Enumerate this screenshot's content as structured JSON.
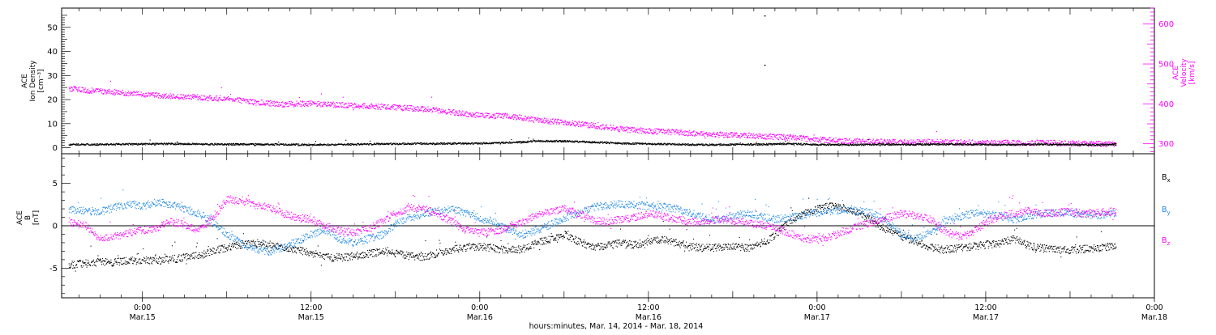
{
  "chart_data": [
    {
      "type": "scatter",
      "panel": "top",
      "title": "",
      "ylabel_left": [
        "ACE",
        "Ion Density",
        "[cm⁻³]"
      ],
      "ylabel_right": [
        "ACE",
        "Velocity",
        "[km/s]"
      ],
      "ylim_left": [
        -2.5,
        58
      ],
      "ylim_right": [
        275,
        640
      ],
      "yticks_left": [
        "0",
        "10",
        "20",
        "30",
        "40",
        "50"
      ],
      "yticks_right": [
        "300",
        "400",
        "500",
        "600"
      ],
      "colors": {
        "density": "#000000",
        "velocity": "#ff00ff"
      },
      "series": [
        {
          "name": "",
          "axis": "left",
          "color": "#000000",
          "x": [
            -10.5,
            -8,
            -4,
            0,
            4,
            8,
            12,
            16,
            20,
            24,
            28,
            32,
            36,
            40,
            44,
            48,
            52,
            54,
            56,
            60,
            64,
            68,
            72,
            76,
            80,
            84,
            88,
            92,
            96,
            100,
            104,
            108,
            112,
            116,
            120,
            124,
            128,
            132,
            136,
            138.5
          ],
          "y": [
            1.5,
            1.5,
            1.6,
            1.7,
            1.8,
            1.7,
            1.6,
            1.6,
            1.5,
            1.4,
            1.5,
            1.7,
            1.8,
            1.9,
            1.9,
            2.0,
            2.3,
            2.5,
            3.0,
            2.9,
            2.5,
            2.0,
            1.8,
            1.6,
            1.4,
            1.5,
            1.6,
            1.8,
            1.5,
            1.4,
            1.5,
            1.5,
            1.6,
            1.6,
            1.5,
            1.4,
            1.6,
            1.5,
            1.4,
            1.6
          ]
        },
        {
          "name": "",
          "axis": "right",
          "color": "#ff00ff",
          "x": [
            -10.5,
            -8,
            -4,
            0,
            4,
            8,
            12,
            16,
            20,
            24,
            28,
            32,
            36,
            40,
            44,
            48,
            52,
            54,
            56,
            60,
            64,
            68,
            72,
            76,
            80,
            84,
            88,
            92,
            96,
            100,
            104,
            108,
            112,
            116,
            120,
            124,
            128,
            132,
            136,
            138.5
          ],
          "y": [
            440,
            435,
            430,
            425,
            420,
            418,
            414,
            405,
            400,
            402,
            398,
            395,
            392,
            388,
            380,
            372,
            370,
            366,
            360,
            355,
            347,
            338,
            333,
            330,
            325,
            323,
            320,
            317,
            312,
            308,
            306,
            305,
            306,
            304,
            304,
            303,
            304,
            302,
            301,
            300
          ]
        }
      ],
      "annotations": [
        {
          "series": "density",
          "x": 88.5,
          "y": 55
        },
        {
          "series": "density",
          "x": 88.5,
          "y": 34.5
        }
      ]
    },
    {
      "type": "scatter",
      "panel": "bottom",
      "title": "",
      "ylabel": [
        "ACE",
        "B",
        "[nT]"
      ],
      "ylim": [
        -8.5,
        8.5
      ],
      "yticks": [
        "-5",
        "0",
        "5"
      ],
      "zero_line": true,
      "colors": {
        "Bx": "#000000",
        "By": "#1e88e5",
        "Bz": "#ff00ff"
      },
      "series": [
        {
          "name": "Bx",
          "color": "#000000",
          "x": [
            -10.5,
            -8,
            -6,
            -4,
            -2,
            0,
            2,
            4,
            6,
            8,
            10,
            12,
            14,
            16,
            18,
            20,
            22,
            24,
            26,
            28,
            30,
            32,
            34,
            36,
            38,
            40,
            42,
            44,
            46,
            48,
            50,
            52,
            54,
            56,
            58,
            60,
            62,
            64,
            66,
            68,
            70,
            72,
            74,
            76,
            78,
            80,
            82,
            84,
            86,
            88,
            90,
            92,
            94,
            96,
            98,
            100,
            102,
            104,
            106,
            108,
            110,
            112,
            114,
            116,
            118,
            120,
            122,
            124,
            126,
            128,
            130,
            132,
            134,
            136,
            138.5
          ],
          "y": [
            -4.6,
            -4.4,
            -4.2,
            -4.3,
            -4.0,
            -4.0,
            -4.1,
            -3.9,
            -3.7,
            -3.5,
            -3.0,
            -2.5,
            -2.2,
            -2.0,
            -2.2,
            -2.5,
            -2.8,
            -3.2,
            -3.6,
            -3.8,
            -3.5,
            -3.3,
            -3.0,
            -3.2,
            -3.5,
            -3.6,
            -3.2,
            -2.8,
            -2.5,
            -2.4,
            -2.6,
            -2.8,
            -2.7,
            -2.0,
            -1.5,
            -1.0,
            -1.8,
            -2.5,
            -2.3,
            -2.0,
            -2.2,
            -1.8,
            -1.5,
            -2.0,
            -2.4,
            -2.6,
            -2.5,
            -2.4,
            -2.6,
            -2.2,
            -1.0,
            0.5,
            1.5,
            2.0,
            2.4,
            2.2,
            1.5,
            0.5,
            -0.5,
            -1.2,
            -1.8,
            -2.5,
            -2.8,
            -2.6,
            -2.4,
            -2.2,
            -2.0,
            -1.5,
            -2.3,
            -2.6,
            -2.8,
            -2.8,
            -2.7,
            -2.6,
            -2.3
          ]
        },
        {
          "name": "By",
          "color": "#1e88e5",
          "x": [
            -10.5,
            -8,
            -6,
            -4,
            -2,
            0,
            2,
            4,
            6,
            8,
            10,
            12,
            14,
            16,
            18,
            20,
            22,
            24,
            26,
            28,
            30,
            32,
            34,
            36,
            38,
            40,
            42,
            44,
            46,
            48,
            50,
            52,
            54,
            56,
            58,
            60,
            62,
            64,
            66,
            68,
            70,
            72,
            74,
            76,
            78,
            80,
            82,
            84,
            86,
            88,
            90,
            92,
            94,
            96,
            98,
            100,
            102,
            104,
            106,
            108,
            110,
            112,
            114,
            116,
            118,
            120,
            122,
            124,
            126,
            128,
            130,
            132,
            134,
            136,
            138.5
          ],
          "y": [
            2.0,
            1.8,
            1.7,
            2.2,
            2.6,
            2.4,
            2.8,
            2.6,
            2.0,
            1.5,
            0.5,
            -1.0,
            -2.0,
            -2.8,
            -3.0,
            -2.5,
            -1.8,
            -1.0,
            -0.5,
            -1.5,
            -2.0,
            -1.5,
            -1.0,
            0.2,
            1.0,
            1.5,
            1.8,
            2.0,
            1.5,
            1.0,
            0.5,
            -0.5,
            -1.0,
            -0.5,
            0.2,
            1.0,
            1.5,
            2.2,
            2.5,
            2.6,
            2.5,
            2.4,
            2.3,
            2.0,
            1.5,
            1.0,
            0.8,
            1.2,
            1.5,
            1.2,
            0.8,
            1.0,
            1.3,
            1.6,
            1.8,
            2.0,
            1.8,
            1.5,
            0.5,
            -1.0,
            -1.5,
            -0.8,
            0.5,
            1.0,
            1.5,
            1.5,
            1.2,
            0.8,
            1.2,
            1.5,
            1.6,
            1.5,
            1.4,
            1.3,
            1.6
          ]
        },
        {
          "name": "Bz",
          "color": "#ff00ff",
          "x": [
            -10.5,
            -8,
            -6,
            -4,
            -2,
            0,
            2,
            4,
            6,
            8,
            10,
            12,
            14,
            16,
            18,
            20,
            22,
            24,
            26,
            28,
            30,
            32,
            34,
            36,
            38,
            40,
            42,
            44,
            46,
            48,
            50,
            52,
            54,
            56,
            58,
            60,
            62,
            64,
            66,
            68,
            70,
            72,
            74,
            76,
            78,
            80,
            82,
            84,
            86,
            88,
            90,
            92,
            94,
            96,
            98,
            100,
            102,
            104,
            106,
            108,
            110,
            112,
            114,
            116,
            118,
            120,
            122,
            124,
            126,
            128,
            130,
            132,
            134,
            136,
            138.5
          ],
          "y": [
            0.5,
            0.0,
            -1.5,
            -1.2,
            -0.8,
            -0.5,
            -0.2,
            0.5,
            0.2,
            -0.5,
            1.0,
            3.2,
            3.0,
            2.5,
            2.2,
            1.5,
            1.0,
            0.8,
            0.0,
            -0.5,
            -0.8,
            -0.4,
            0.5,
            1.5,
            2.2,
            2.0,
            1.5,
            0.5,
            -0.5,
            -0.8,
            -0.6,
            -0.2,
            0.5,
            1.2,
            1.8,
            2.0,
            1.5,
            0.8,
            0.5,
            0.8,
            1.0,
            1.5,
            1.2,
            0.8,
            0.5,
            0.6,
            0.8,
            0.6,
            0.4,
            0.2,
            -0.2,
            -0.8,
            -1.5,
            -1.6,
            -1.2,
            -0.5,
            0.0,
            0.5,
            1.0,
            1.5,
            1.2,
            0.8,
            -0.5,
            -1.2,
            -0.8,
            0.5,
            1.2,
            1.5,
            1.8,
            1.5,
            1.6,
            1.7,
            1.5,
            1.6,
            1.8
          ]
        }
      ],
      "legend": {
        "placement": "right",
        "items": [
          {
            "label": "B",
            "sub": "x",
            "color": "#000000"
          },
          {
            "label": "B",
            "sub": "y",
            "color": "#1e88e5"
          },
          {
            "label": "B",
            "sub": "z",
            "color": "#ff00ff"
          }
        ]
      }
    }
  ],
  "x_axis": {
    "xlim": [
      -11.5,
      144
    ],
    "ticks": [
      {
        "x": 0,
        "time": "0:00",
        "date": "Mar.15"
      },
      {
        "x": 24,
        "time": "12:00",
        "date": "Mar.15"
      },
      {
        "x": 48,
        "time": "0:00",
        "date": "Mar.16"
      },
      {
        "x": 72,
        "time": "12:00",
        "date": "Mar.16"
      },
      {
        "x": 96,
        "time": "0:00",
        "date": "Mar.17"
      },
      {
        "x": 120,
        "time": "12:00",
        "date": "Mar.17"
      },
      {
        "x": 144,
        "time": "0:00",
        "date": "Mar.18"
      }
    ],
    "xlabel": "hours:minutes, Mar. 14, 2014 - Mar. 18, 2014"
  }
}
